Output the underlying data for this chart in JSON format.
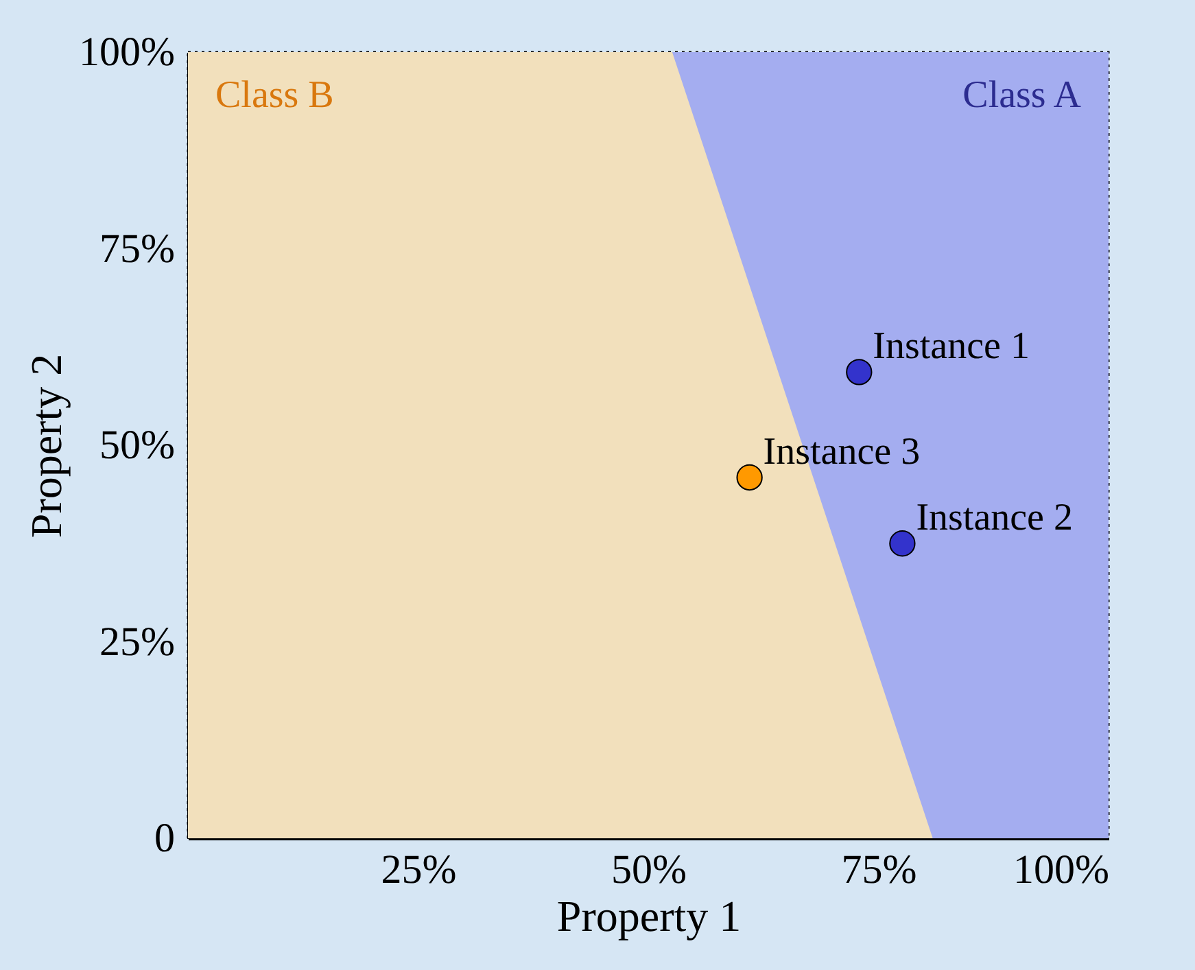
{
  "chart_data": {
    "type": "scatter",
    "xlabel": "Property 1",
    "ylabel": "Property 2",
    "xlim": [
      0,
      100
    ],
    "ylim": [
      0,
      100
    ],
    "xticks": [
      {
        "value": 25,
        "label": "25%"
      },
      {
        "value": 50,
        "label": "50%"
      },
      {
        "value": 75,
        "label": "75%"
      },
      {
        "value": 100,
        "label": "100%"
      }
    ],
    "yticks": [
      {
        "value": 0,
        "label": "0"
      },
      {
        "value": 25,
        "label": "25%"
      },
      {
        "value": 50,
        "label": "50%"
      },
      {
        "value": 75,
        "label": "75%"
      },
      {
        "value": 100,
        "label": "100%"
      }
    ],
    "series": [
      {
        "name": "Class A",
        "type": "area",
        "color": "#a4adf0",
        "x": [
          52.6,
          80.9,
          100
        ],
        "values": [
          100,
          100,
          100
        ]
      },
      {
        "name": "Class B",
        "type": "area",
        "color": "#f2e0bc",
        "x": [
          0,
          52.6,
          80.9
        ],
        "values": [
          100,
          100,
          0
        ]
      },
      {
        "marker": "circle",
        "x": [
          72.9,
          77.6,
          61.0
        ],
        "values": [
          59.3,
          37.5,
          45.9
        ],
        "colors": [
          "#3333cc",
          "#3333cc",
          "#ff9900"
        ]
      }
    ],
    "annotations": [
      {
        "text": "Instance 1",
        "x": 72.9,
        "y": 59.3
      },
      {
        "text": "Instance 2",
        "x": 77.6,
        "y": 37.5
      },
      {
        "text": "Instance 3",
        "x": 61.0,
        "y": 45.9
      }
    ],
    "grid": false
  }
}
